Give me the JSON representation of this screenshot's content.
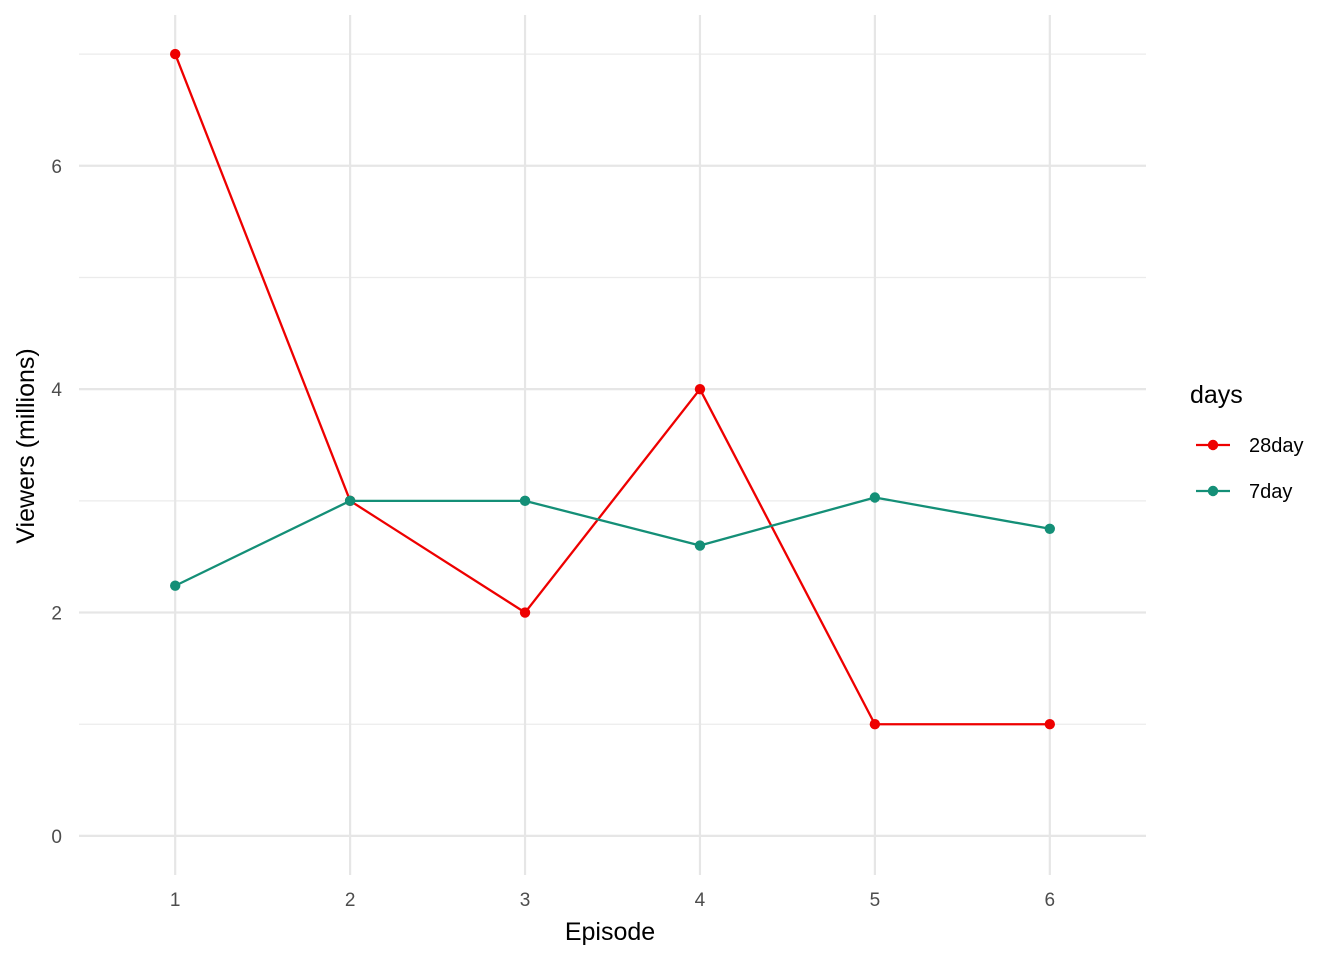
{
  "chart_data": {
    "type": "line",
    "title": "",
    "xlabel": "Episode",
    "ylabel": "Viewers (millions)",
    "x": [
      1,
      2,
      3,
      4,
      5,
      6
    ],
    "x_ticks": [
      "1",
      "2",
      "3",
      "4",
      "5",
      "6"
    ],
    "y_ticks": [
      "0",
      "2",
      "4",
      "6"
    ],
    "xlim": [
      0.45,
      6.55
    ],
    "ylim": [
      -0.35,
      7.35
    ],
    "grid": true,
    "legend": {
      "title": "days",
      "position": "right"
    },
    "series": [
      {
        "name": "28day",
        "color": "#ee0000",
        "values": [
          7,
          3,
          2,
          4,
          1,
          1
        ]
      },
      {
        "name": "7day",
        "color": "#148f77",
        "values": [
          2.24,
          3,
          3,
          2.6,
          3.03,
          2.75
        ]
      }
    ]
  }
}
